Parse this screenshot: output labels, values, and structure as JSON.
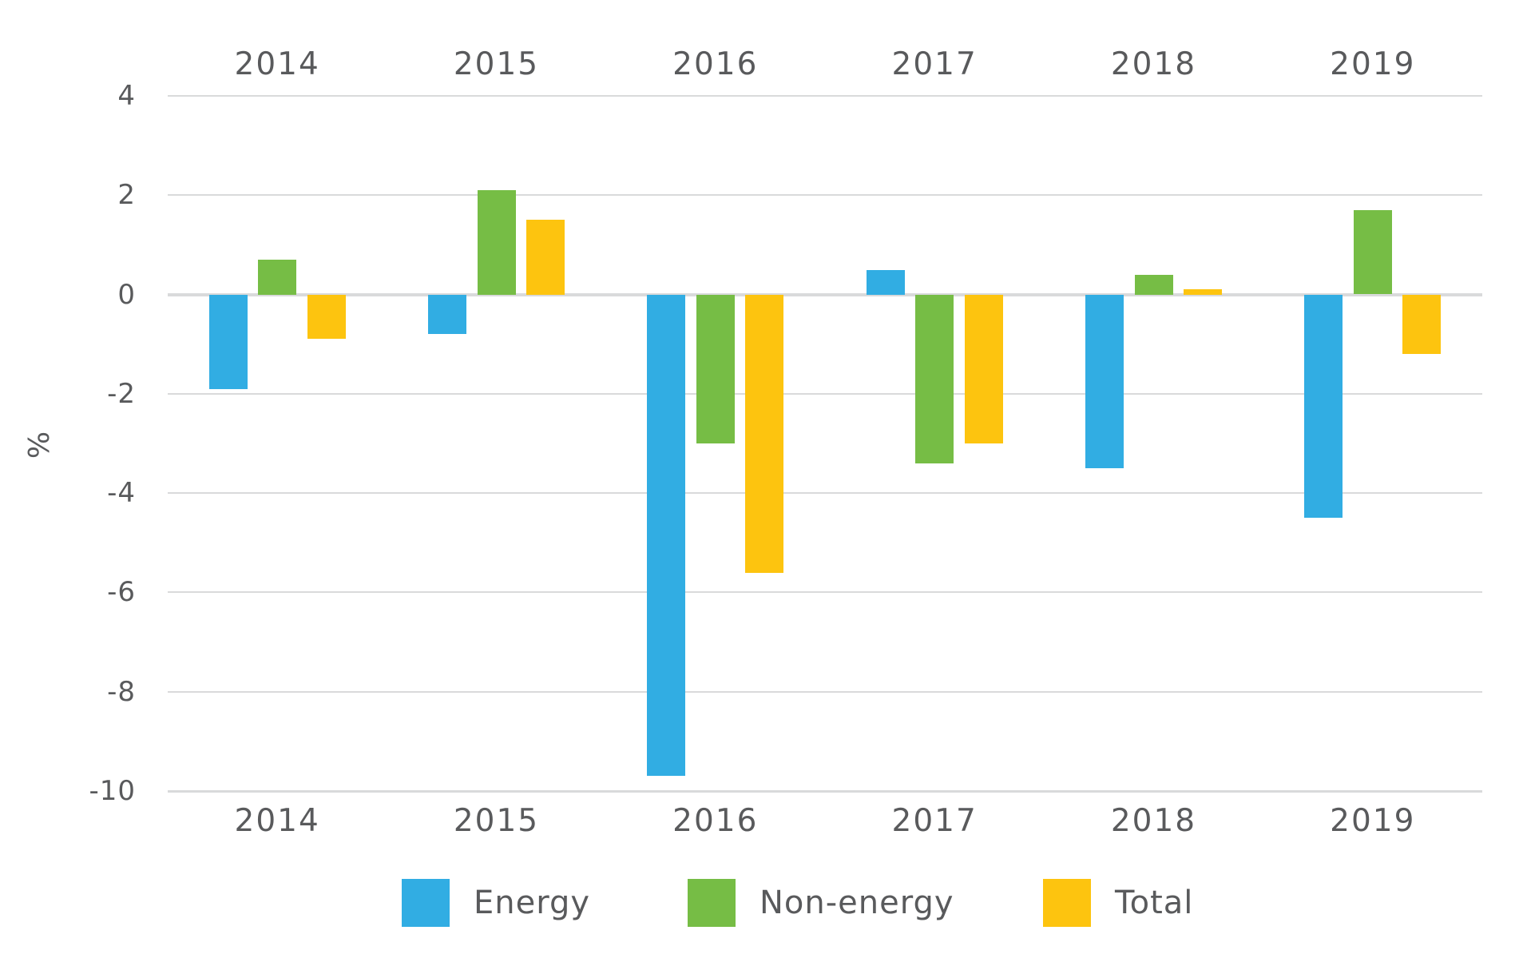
{
  "chart_data": {
    "type": "bar",
    "title": "",
    "xlabel": "",
    "ylabel": "%",
    "categories": [
      "2014",
      "2015",
      "2016",
      "2017",
      "2018",
      "2019"
    ],
    "series": [
      {
        "name": "Energy",
        "color": "#31ADE3",
        "values": [
          -1.9,
          -0.8,
          -9.7,
          0.5,
          -3.5,
          -4.5
        ]
      },
      {
        "name": "Non-energy",
        "color": "#76BD45",
        "values": [
          0.7,
          2.1,
          -3.0,
          -3.4,
          0.4,
          1.7
        ]
      },
      {
        "name": "Total",
        "color": "#FDC40F",
        "values": [
          -0.9,
          1.5,
          -5.6,
          -3.0,
          0.1,
          -1.2
        ]
      }
    ],
    "ylim": [
      -10,
      4
    ],
    "yticks": [
      4,
      2,
      0,
      -2,
      -4,
      -6,
      -8,
      -10
    ],
    "grid": true,
    "x_tick_labels_position": "top and bottom",
    "legend_position": "bottom",
    "legend": [
      "Energy",
      "Non-energy",
      "Total"
    ]
  },
  "style": {
    "text_color": "#595A5C",
    "gridline_color": "#D9DADB",
    "background_color": "#FFFFFF"
  }
}
